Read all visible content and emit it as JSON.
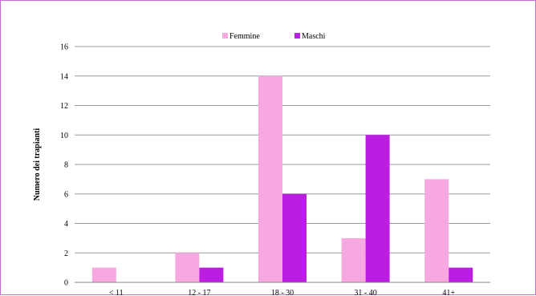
{
  "chart_data": {
    "type": "bar",
    "ylabel": "Numero dei trapianti",
    "xlabel": "",
    "ylim": [
      0,
      16
    ],
    "yticks": [
      0,
      2,
      4,
      6,
      8,
      10,
      12,
      14,
      16
    ],
    "categories": [
      "< 11",
      "12 - 17",
      "18 - 30",
      "31 - 40",
      "41+"
    ],
    "series": [
      {
        "name": "Femmine",
        "color": "#f7a8e0",
        "values": [
          1,
          2,
          14,
          3,
          7
        ]
      },
      {
        "name": "Maschi",
        "color": "#bb1ee0",
        "values": [
          0,
          1,
          6,
          10,
          1
        ]
      }
    ],
    "grid": true,
    "legend_position": "top-center"
  }
}
